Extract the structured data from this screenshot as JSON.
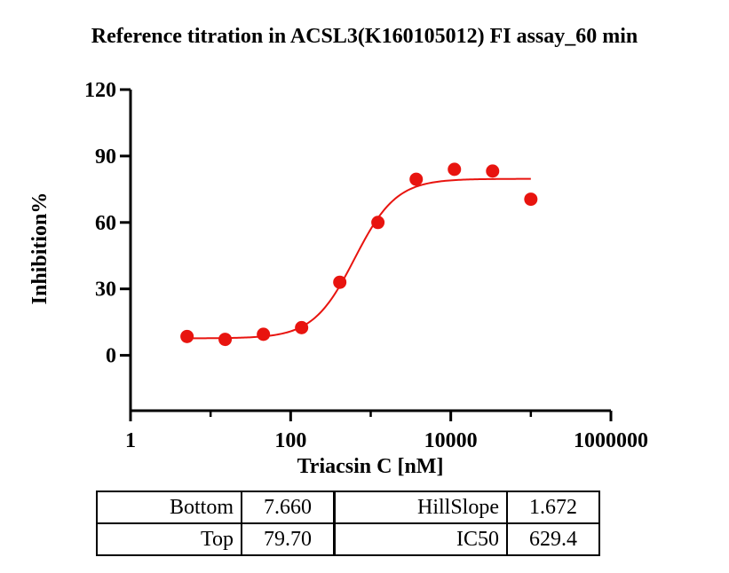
{
  "chart_data": {
    "type": "scatter",
    "title": "Reference titration in ACSL3(K160105012) FI assay_60 min",
    "xlabel": "Triacsin C [nM]",
    "ylabel": "Inhibition%",
    "x_scale": "log",
    "xlim": [
      1,
      1000000
    ],
    "ylim": [
      -25,
      120
    ],
    "x_ticks": [
      1,
      100,
      10000,
      1000000
    ],
    "x_tick_labels": [
      "1",
      "100",
      "10000",
      "1000000"
    ],
    "y_ticks": [
      0,
      30,
      60,
      90,
      120
    ],
    "y_tick_labels": [
      "0",
      "30",
      "60",
      "90",
      "120"
    ],
    "grid": false,
    "legend": "none",
    "series": [
      {
        "marker_color": "#e8140f",
        "x": [
          5.08,
          15.2,
          45.7,
          137,
          411,
          1230,
          3700,
          11100,
          33300,
          100000
        ],
        "y": [
          8.5,
          7.2,
          9.5,
          12.5,
          33.0,
          60.0,
          79.5,
          84.0,
          83.2,
          70.5
        ]
      }
    ],
    "fit": {
      "model": "four-parameter logistic",
      "color": "#e8140f",
      "bottom": 7.66,
      "top": 79.7,
      "hill_slope": 1.672,
      "ic50": 629.4,
      "x_range": [
        5.08,
        100000
      ]
    }
  },
  "params_table": {
    "left": [
      {
        "name": "Bottom",
        "value": "7.660"
      },
      {
        "name": "Top",
        "value": "79.70"
      }
    ],
    "right": [
      {
        "name": "HillSlope",
        "value": "1.672"
      },
      {
        "name": "IC50",
        "value": "629.4"
      }
    ]
  }
}
